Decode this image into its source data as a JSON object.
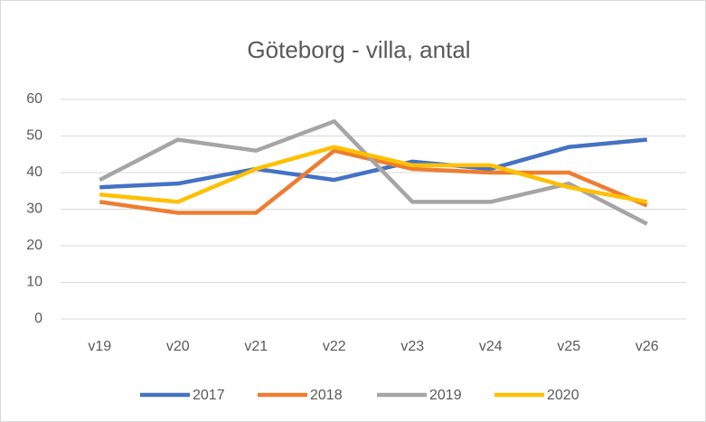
{
  "chart_data": {
    "type": "line",
    "title": "Göteborg - villa, antal",
    "categories": [
      "v19",
      "v20",
      "v21",
      "v22",
      "v23",
      "v24",
      "v25",
      "v26"
    ],
    "series": [
      {
        "name": "2017",
        "color": "#4472c4",
        "values": [
          36,
          37,
          41,
          38,
          43,
          41,
          47,
          49
        ]
      },
      {
        "name": "2018",
        "color": "#ed7d31",
        "values": [
          32,
          29,
          29,
          46,
          41,
          40,
          40,
          31
        ]
      },
      {
        "name": "2019",
        "color": "#a5a5a5",
        "values": [
          38,
          49,
          46,
          54,
          32,
          32,
          37,
          26
        ]
      },
      {
        "name": "2020",
        "color": "#ffc000",
        "values": [
          34,
          32,
          41,
          47,
          42,
          42,
          36,
          32
        ]
      }
    ],
    "ylim": [
      0,
      60
    ],
    "yticks": [
      0,
      10,
      20,
      30,
      40,
      50,
      60
    ],
    "grid": true,
    "legend": "bottom"
  }
}
